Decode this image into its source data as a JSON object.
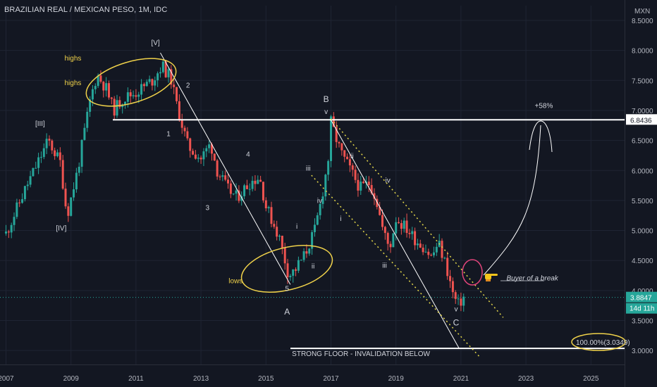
{
  "header": {
    "title": "BRAZILIAN REAL / MEXICAN PESO, 1M, IDC"
  },
  "chart_data": {
    "type": "candlestick",
    "currency_label": "MXN",
    "ylim": [
      2.85,
      8.6
    ],
    "xlim": [
      2007.0,
      2026.0
    ],
    "y_ticks": [
      "8.5000",
      "8.0000",
      "7.5000",
      "7.0000",
      "6.5000",
      "6.0000",
      "5.5000",
      "5.0000",
      "4.5000",
      "4.0000",
      "3.5000",
      "3.0000"
    ],
    "x_ticks": [
      "2007",
      "2009",
      "2011",
      "2013",
      "2015",
      "2017",
      "2019",
      "2021",
      "2023",
      "2025"
    ],
    "last_price": "3.8847",
    "countdown": "14d 11h",
    "horizontal_levels": [
      {
        "label": "6.8436",
        "value": 6.8436
      },
      {
        "label": "100.00%(3.0349)",
        "value": 3.0349
      }
    ],
    "path_points": [
      [
        2007.0,
        4.95
      ],
      [
        2007.6,
        5.7
      ],
      [
        2008.3,
        6.5
      ],
      [
        2008.7,
        6.1
      ],
      [
        2008.8,
        5.5
      ],
      [
        2008.9,
        5.3
      ],
      [
        2009.2,
        6.0
      ],
      [
        2009.6,
        7.2
      ],
      [
        2009.8,
        7.6
      ],
      [
        2010.1,
        7.35
      ],
      [
        2010.3,
        7.0
      ],
      [
        2010.6,
        7.2
      ],
      [
        2011.0,
        7.3
      ],
      [
        2011.5,
        7.5
      ],
      [
        2011.8,
        7.75
      ],
      [
        2012.1,
        7.5
      ],
      [
        2012.2,
        7.2
      ],
      [
        2012.4,
        6.8
      ],
      [
        2012.6,
        6.4
      ],
      [
        2013.0,
        6.2
      ],
      [
        2013.3,
        6.45
      ],
      [
        2013.5,
        6.0
      ],
      [
        2013.8,
        5.7
      ],
      [
        2014.1,
        5.55
      ],
      [
        2014.5,
        5.8
      ],
      [
        2014.8,
        5.9
      ],
      [
        2015.0,
        5.4
      ],
      [
        2015.4,
        4.9
      ],
      [
        2015.7,
        4.25
      ],
      [
        2015.9,
        4.35
      ],
      [
        2016.2,
        4.6
      ],
      [
        2016.5,
        5.0
      ],
      [
        2016.7,
        5.5
      ],
      [
        2016.95,
        6.3
      ],
      [
        2017.0,
        6.8
      ],
      [
        2017.3,
        6.3
      ],
      [
        2017.6,
        6.0
      ],
      [
        2017.9,
        5.7
      ],
      [
        2018.2,
        5.8
      ],
      [
        2018.4,
        5.5
      ],
      [
        2018.6,
        5.0
      ],
      [
        2018.8,
        4.7
      ],
      [
        2019.0,
        5.2
      ],
      [
        2019.3,
        5.05
      ],
      [
        2019.6,
        4.85
      ],
      [
        2019.9,
        4.7
      ],
      [
        2020.1,
        4.55
      ],
      [
        2020.3,
        4.8
      ],
      [
        2020.55,
        4.4
      ],
      [
        2020.75,
        3.95
      ],
      [
        2020.9,
        3.75
      ],
      [
        2021.1,
        3.9
      ]
    ],
    "wave_labels": [
      {
        "text": "[V]",
        "x": 2011.6,
        "y": 8.09
      },
      {
        "text": "[III]",
        "x": 2008.05,
        "y": 6.74
      },
      {
        "text": "[IV]",
        "x": 2008.7,
        "y": 5.0
      },
      {
        "text": "2",
        "x": 2012.6,
        "y": 7.38
      },
      {
        "text": "1",
        "x": 2012.0,
        "y": 6.57
      },
      {
        "text": "3",
        "x": 2013.2,
        "y": 5.34
      },
      {
        "text": "4",
        "x": 2014.45,
        "y": 6.23
      },
      {
        "text": "5",
        "x": 2015.65,
        "y": 3.99
      },
      {
        "text": "A",
        "x": 2015.65,
        "y": 3.6
      },
      {
        "text": "B",
        "x": 2016.85,
        "y": 7.14
      },
      {
        "text": "v",
        "x": 2016.85,
        "y": 6.94
      },
      {
        "text": "i",
        "x": 2015.95,
        "y": 5.03
      },
      {
        "text": "ii",
        "x": 2016.45,
        "y": 4.37
      },
      {
        "text": "iii",
        "x": 2016.3,
        "y": 6.0
      },
      {
        "text": "iv",
        "x": 2016.65,
        "y": 5.46
      },
      {
        "text": "ii",
        "x": 2017.65,
        "y": 6.2
      },
      {
        "text": "i",
        "x": 2017.3,
        "y": 5.16
      },
      {
        "text": "iii",
        "x": 2018.65,
        "y": 4.38
      },
      {
        "text": "iv",
        "x": 2018.75,
        "y": 5.8
      },
      {
        "text": "v",
        "x": 2020.85,
        "y": 3.65
      },
      {
        "text": "C",
        "x": 2020.85,
        "y": 3.42
      }
    ],
    "annotations": [
      {
        "text": "highs",
        "x": 2008.8,
        "y": 7.83
      },
      {
        "text": "highs",
        "x": 2008.8,
        "y": 7.42
      },
      {
        "text": "lows",
        "x": 2013.85,
        "y": 4.12
      },
      {
        "text": "+58%",
        "x": 2023.55,
        "y": 7.04
      },
      {
        "text": "Buyer of a break",
        "x": 2022.4,
        "y": 4.17
      },
      {
        "text": "STRONG FLOOR - INVALIDATION BELOW",
        "x": 2015.8,
        "y": 2.91
      }
    ]
  }
}
